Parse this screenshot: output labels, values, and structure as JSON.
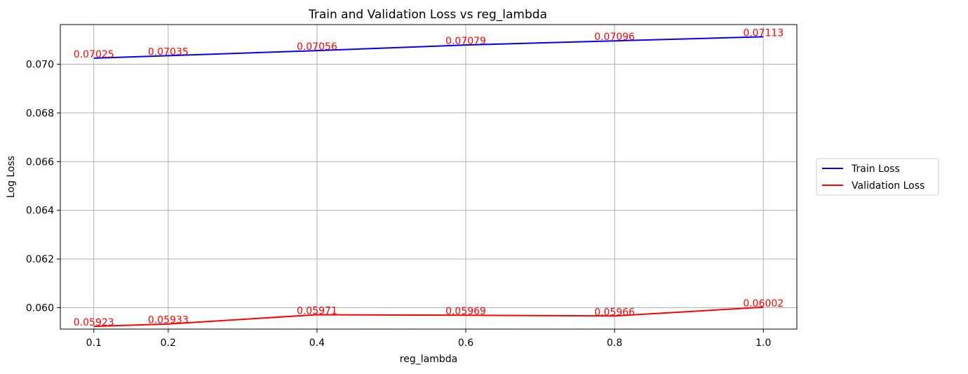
{
  "chart_data": {
    "type": "line",
    "title": "Train and Validation Loss vs reg_lambda",
    "xlabel": "reg_lambda",
    "ylabel": "Log Loss",
    "x": [
      0.1,
      0.2,
      0.4,
      0.6,
      0.8,
      1.0
    ],
    "xticks": [
      "0.1",
      "0.2",
      "0.4",
      "0.6",
      "0.8",
      "1.0"
    ],
    "yticks": [
      "0.060",
      "0.062",
      "0.064",
      "0.066",
      "0.068",
      "0.070"
    ],
    "ytick_values": [
      0.06,
      0.062,
      0.064,
      0.066,
      0.068,
      0.07
    ],
    "xlim": [
      0.055,
      1.045
    ],
    "ylim": [
      0.05912,
      0.07163
    ],
    "grid": true,
    "legend_position": "outside-right",
    "series": [
      {
        "name": "Train Loss",
        "color": "#0000ff",
        "values": [
          0.07025,
          0.07035,
          0.07056,
          0.07079,
          0.07096,
          0.07113
        ],
        "labels": [
          "0.07025",
          "0.07035",
          "0.07056",
          "0.07079",
          "0.07096",
          "0.07113"
        ]
      },
      {
        "name": "Validation Loss",
        "color": "#ff0000",
        "values": [
          0.05923,
          0.05933,
          0.05971,
          0.05969,
          0.05966,
          0.06002
        ],
        "labels": [
          "0.05923",
          "0.05933",
          "0.05971",
          "0.05969",
          "0.05966",
          "0.06002"
        ]
      }
    ],
    "label_color": "#ff0000"
  }
}
